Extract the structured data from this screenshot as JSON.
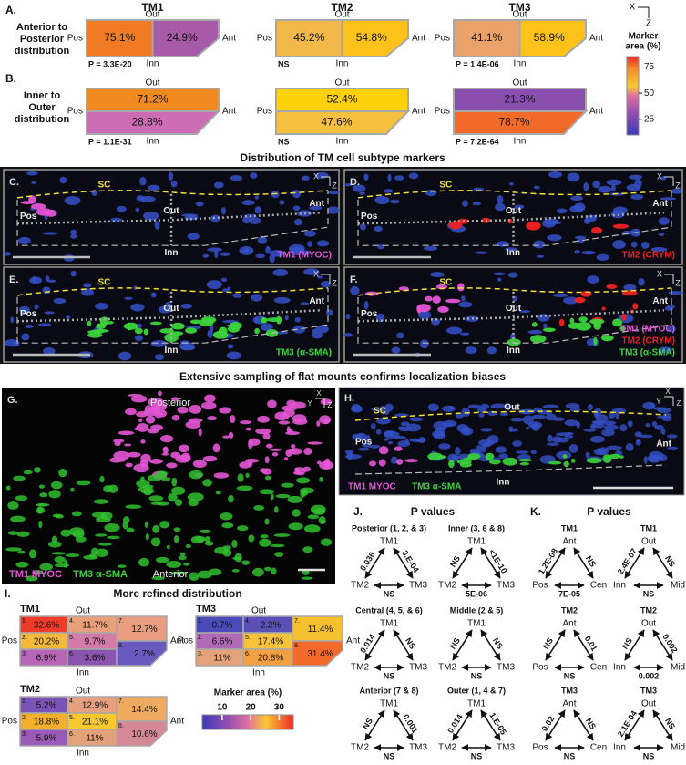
{
  "panel_a": {
    "label": "A.",
    "row_label": [
      "Anterior to",
      "Posterior",
      "distribution"
    ],
    "out": "Out",
    "inn": "Inn",
    "pos": "Pos",
    "ant": "Ant",
    "boxes": [
      {
        "title": "TM1",
        "left": "75.1%",
        "left_color": "#f07b24",
        "right": "24.9%",
        "right_color": "#a65aa8",
        "p": "P = 3.3E-20"
      },
      {
        "title": "TM2",
        "left": "45.2%",
        "left_color": "#f2b84a",
        "right": "54.8%",
        "right_color": "#fcc21a",
        "p": "NS"
      },
      {
        "title": "TM3",
        "left": "41.1%",
        "left_color": "#e8a26a",
        "right": "58.9%",
        "right_color": "#fcc21a",
        "p": "P = 1.4E-06"
      }
    ]
  },
  "panel_b": {
    "label": "B.",
    "row_label": [
      "Inner to",
      "Outer",
      "distribution"
    ],
    "out": "Out",
    "inn": "Inn",
    "pos": "Pos",
    "ant": "Ant",
    "boxes": [
      {
        "top": "71.2%",
        "top_color": "#f28a22",
        "bottom": "28.8%",
        "bottom_color": "#cc6cb4",
        "p": "P = 1.1E-31"
      },
      {
        "top": "52.4%",
        "top_color": "#fdd20a",
        "bottom": "47.6%",
        "bottom_color": "#f5c040",
        "p": "NS"
      },
      {
        "top": "21.3%",
        "top_color": "#8a4fae",
        "bottom": "78.7%",
        "bottom_color": "#f26a2a",
        "p": "P = 7.2E-64"
      }
    ]
  },
  "axes_top": [
    "X",
    "Z"
  ],
  "colorbar_top": {
    "label": [
      "Marker",
      "area (%)"
    ],
    "lim": [
      10,
      85
    ],
    "ticks": [
      75,
      50,
      25
    ]
  },
  "section_1": "Distribution of TM cell subtype markers",
  "panel_c": {
    "label": "C.",
    "sc": "SC",
    "out": "Out",
    "inn": "Inn",
    "pos": "Pos",
    "ant": "Ant",
    "axes": [
      "X",
      "Z"
    ],
    "legend": [
      {
        "text": "TM1 (MYOC)",
        "color": "#e455d6"
      }
    ]
  },
  "panel_d": {
    "label": "D.",
    "sc": "SC",
    "out": "Out",
    "inn": "Inn",
    "pos": "Pos",
    "ant": "Ant",
    "axes": [
      "X",
      "Z"
    ],
    "legend": [
      {
        "text": "TM2 (CRYM)",
        "color": "#ee2222"
      }
    ]
  },
  "panel_e": {
    "label": "E.",
    "sc": "SC",
    "out": "Out",
    "inn": "Inn",
    "pos": "Pos",
    "ant": "Ant",
    "axes": [
      "X",
      "Z"
    ],
    "legend": [
      {
        "text": "TM3 (α-SMA)",
        "color": "#3ad43a"
      }
    ]
  },
  "panel_f": {
    "label": "F.",
    "sc": "SC",
    "out": "Out",
    "inn": "Inn",
    "pos": "Pos",
    "ant": "Ant",
    "axes": [
      "X",
      "Z"
    ],
    "legend": [
      {
        "text": "TM1 (MYOC)",
        "color": "#e455d6"
      },
      {
        "text": "TM2 (CRYM)",
        "color": "#ee2222"
      },
      {
        "text": "TM3 (α-SMA)",
        "color": "#3ad43a"
      }
    ]
  },
  "section_2": "Extensive sampling of flat mounts confirms localization biases",
  "panel_g": {
    "label": "G.",
    "top": "Posterior",
    "bottom": "Anterior",
    "axes": [
      "X",
      "Y",
      "Z"
    ],
    "legend": [
      {
        "text": "TM1 MYOC",
        "color": "#e455d6"
      },
      {
        "text": "TM3 α-SMA",
        "color": "#3ad43a"
      }
    ]
  },
  "panel_h": {
    "label": "H.",
    "sc": "SC",
    "out": "Out",
    "inn": "Inn",
    "pos": "Pos",
    "ant": "Ant",
    "axes": [
      "X",
      "Y",
      "Z"
    ],
    "legend": [
      {
        "text": "TM1 MYOC",
        "color": "#e455d6"
      },
      {
        "text": "TM3 α-SMA",
        "color": "#3ad43a"
      }
    ]
  },
  "panel_i": {
    "label": "I.",
    "title": "More refined distribution",
    "out": "Out",
    "inn": "Inn",
    "pos": "Pos",
    "ant": "Ant",
    "grids": [
      {
        "name": "TM1",
        "cells": [
          {
            "n": "1.",
            "v": "32.6%",
            "color": "#f03a2a"
          },
          {
            "n": "2.",
            "v": "20.2%",
            "color": "#f4b83a"
          },
          {
            "n": "3.",
            "v": "6.9%",
            "color": "#b865b8"
          },
          {
            "n": "4.",
            "v": "11.7%",
            "color": "#e7a07a"
          },
          {
            "n": "5.",
            "v": "9.7%",
            "color": "#d27ca8"
          },
          {
            "n": "6.",
            "v": "3.6%",
            "color": "#8a55b0"
          },
          {
            "n": "7.",
            "v": "12.7%",
            "color": "#e89c80"
          },
          {
            "n": "8.",
            "v": "2.7%",
            "color": "#6a5ac0"
          }
        ]
      },
      {
        "name": "TM3",
        "cells": [
          {
            "n": "1.",
            "v": "0.7%",
            "color": "#4a4ab8"
          },
          {
            "n": "2.",
            "v": "6.6%",
            "color": "#b06ab8"
          },
          {
            "n": "3.",
            "v": "11%",
            "color": "#e4a27a"
          },
          {
            "n": "4.",
            "v": "2.2%",
            "color": "#5a50b8"
          },
          {
            "n": "5.",
            "v": "17.4%",
            "color": "#f6c33a"
          },
          {
            "n": "6.",
            "v": "20.8%",
            "color": "#f4a040"
          },
          {
            "n": "7.",
            "v": "11.4%",
            "color": "#f5c030"
          },
          {
            "n": "8.",
            "v": "31.4%",
            "color": "#f46a2a"
          }
        ]
      },
      {
        "name": "TM2",
        "cells": [
          {
            "n": "1.",
            "v": "5.2%",
            "color": "#7a52b8"
          },
          {
            "n": "2.",
            "v": "18.8%",
            "color": "#f4b02a"
          },
          {
            "n": "3.",
            "v": "5.9%",
            "color": "#9a5ab8"
          },
          {
            "n": "4.",
            "v": "12.9%",
            "color": "#e6a080"
          },
          {
            "n": "5.",
            "v": "21.1%",
            "color": "#f8c830"
          },
          {
            "n": "6.",
            "v": "11%",
            "color": "#e4a27a"
          },
          {
            "n": "7.",
            "v": "14.4%",
            "color": "#eeaa60"
          },
          {
            "n": "8.",
            "v": "10.6%",
            "color": "#d48898"
          }
        ]
      }
    ],
    "colorbar": {
      "label": "Marker area (%)",
      "lim": [
        3,
        35
      ],
      "ticks": [
        10,
        20,
        30
      ]
    }
  },
  "panel_j": {
    "label": "J.",
    "title": "P values",
    "triangles": [
      {
        "caption": "Posterior (1, 2, & 3)",
        "nodes": [
          "TM1",
          "TM2",
          "TM3"
        ],
        "edges": [
          "0.036",
          "3.E-04",
          "NS"
        ]
      },
      {
        "caption": "Inner (3, 6 & 8)",
        "nodes": [
          "TM1",
          "TM2",
          "TM3"
        ],
        "edges": [
          "NS",
          "<1E-10",
          "5E-06"
        ]
      },
      {
        "caption": "Central (4, 5, & 6)",
        "nodes": [
          "TM1",
          "TM2",
          "TM3"
        ],
        "edges": [
          "0.014",
          "NS",
          "NS"
        ]
      },
      {
        "caption": "Middle (2 & 5)",
        "nodes": [
          "TM1",
          "TM2",
          "TM3"
        ],
        "edges": [
          "NS",
          "NS",
          "NS"
        ]
      },
      {
        "caption": "Anterior (7 & 8)",
        "nodes": [
          "TM1",
          "TM2",
          "TM3"
        ],
        "edges": [
          "NS",
          "0.001",
          "NS"
        ]
      },
      {
        "caption": "Outer (1, 4 & 7)",
        "nodes": [
          "TM1",
          "TM2",
          "TM3"
        ],
        "edges": [
          "0.014",
          "1.E-05",
          "NS"
        ]
      }
    ]
  },
  "panel_k": {
    "label": "K.",
    "title": "P values",
    "triangles": [
      {
        "caption": "TM1",
        "nodes": [
          "Ant",
          "Pos",
          "Cen"
        ],
        "edges": [
          "1.2E-08",
          "NS",
          "7E-05"
        ]
      },
      {
        "caption": "TM1",
        "nodes": [
          "Out",
          "Inn",
          "Mid"
        ],
        "edges": [
          "2.4E-07",
          "NS",
          "NS"
        ]
      },
      {
        "caption": "TM2",
        "nodes": [
          "Ant",
          "Pos",
          "Cen"
        ],
        "edges": [
          "NS",
          "0.01",
          "NS"
        ]
      },
      {
        "caption": "TM2",
        "nodes": [
          "Out",
          "Inn",
          "Mid"
        ],
        "edges": [
          "NS",
          "0.002",
          "0.002"
        ]
      },
      {
        "caption": "TM3",
        "nodes": [
          "Ant",
          "Pos",
          "Cen"
        ],
        "edges": [
          "0.02",
          "NS",
          "NS"
        ]
      },
      {
        "caption": "TM3",
        "nodes": [
          "Out",
          "Inn",
          "Mid"
        ],
        "edges": [
          "2.1E-04",
          "NS",
          "NS"
        ]
      }
    ]
  }
}
